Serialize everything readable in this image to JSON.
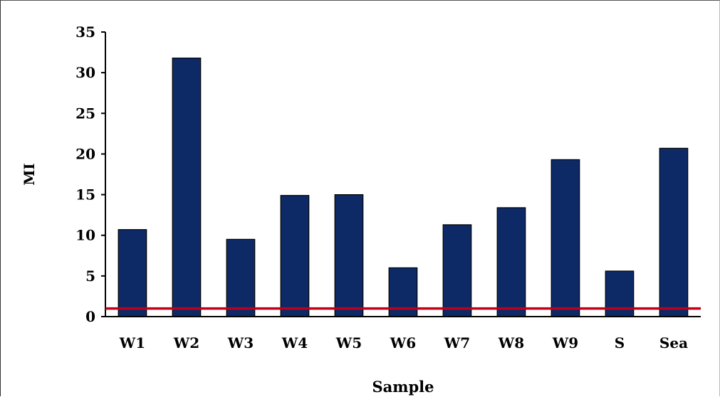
{
  "chart_data": {
    "type": "bar",
    "title": "",
    "xlabel": "Sample",
    "ylabel": "MI",
    "categories": [
      "W1",
      "W2",
      "W3",
      "W4",
      "W5",
      "W6",
      "W7",
      "W8",
      "W9",
      "S",
      "Sea"
    ],
    "values": [
      10.7,
      31.8,
      9.5,
      14.9,
      15.0,
      6.0,
      11.3,
      13.4,
      19.3,
      5.6,
      20.7
    ],
    "ylim": [
      0,
      35
    ],
    "yticks": [
      "0",
      "5",
      "10",
      "15",
      "20",
      "25",
      "30",
      "35"
    ],
    "reference_line": 1,
    "grid": false,
    "legend": "none",
    "colors": {
      "bar": "#0d2a67",
      "bar_edge": "#000000",
      "reference_line": "#c0001a",
      "axis": "#000000"
    }
  }
}
